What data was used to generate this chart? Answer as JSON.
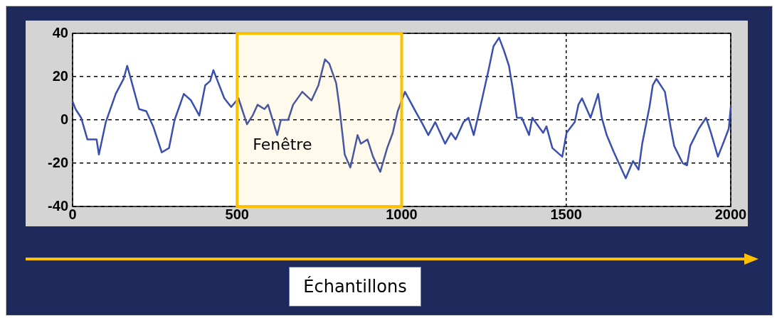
{
  "chart_data": {
    "type": "line",
    "xlabel": "Échantillons",
    "xlim": [
      0,
      2000
    ],
    "xticks": [
      0,
      500,
      1000,
      1500,
      2000
    ],
    "ylim": [
      -40,
      40
    ],
    "yticks": [
      -40,
      -20,
      0,
      20,
      40
    ],
    "grid": true,
    "legend": false,
    "marker": "none",
    "line_style": "solid",
    "bands": [
      {
        "axis": "x",
        "from": 500,
        "to": 1000,
        "label": "Fenêtre",
        "color": "#ffc000"
      }
    ],
    "series": [
      {
        "color": "#3a4fb0",
        "x": [
          0,
          9,
          26,
          45,
          73,
          80,
          101,
          131,
          155,
          166,
          177,
          202,
          224,
          245,
          271,
          293,
          310,
          338,
          360,
          385,
          403,
          418,
          428,
          461,
          482,
          504,
          530,
          547,
          562,
          583,
          594,
          622,
          633,
          655,
          670,
          698,
          726,
          747,
          767,
          780,
          801,
          810,
          827,
          844,
          853,
          866,
          876,
          896,
          913,
          935,
          956,
          973,
          988,
          1010,
          1042,
          1064,
          1081,
          1102,
          1132,
          1150,
          1164,
          1188,
          1203,
          1219,
          1236,
          1264,
          1279,
          1296,
          1311,
          1326,
          1337,
          1350,
          1365,
          1387,
          1397,
          1430,
          1440,
          1458,
          1488,
          1501,
          1526,
          1537,
          1548,
          1574,
          1597,
          1608,
          1623,
          1645,
          1660,
          1681,
          1703,
          1720,
          1731,
          1753,
          1763,
          1774,
          1800,
          1817,
          1828,
          1854,
          1867,
          1877,
          1903,
          1925,
          1940,
          1961,
          1979,
          1994,
          2000
        ],
        "values": [
          8.5,
          5,
          1,
          -9,
          -9,
          -16,
          -1,
          12,
          19,
          25,
          19,
          5,
          4,
          -3,
          -15,
          -13,
          0,
          12,
          9,
          2,
          16,
          18,
          23,
          10,
          6,
          10,
          -2,
          2,
          7,
          5,
          7,
          -7,
          0,
          0,
          7,
          13,
          9,
          16,
          28,
          26,
          17,
          7,
          -16,
          -22,
          -16,
          -7,
          -11,
          -9,
          -17,
          -24,
          -13,
          -6,
          4,
          13,
          4,
          -2,
          -7,
          -1,
          -11,
          -6,
          -9,
          -1,
          1,
          -7,
          4,
          23,
          34,
          38,
          32,
          25,
          15,
          1,
          1,
          -7,
          1,
          -6,
          -3,
          -13,
          -17,
          -6,
          -1,
          7,
          10,
          1,
          12,
          1,
          -7,
          -15,
          -20,
          -27,
          -19,
          -23,
          -11,
          6,
          16,
          19,
          13,
          -3,
          -12,
          -20,
          -21,
          -12,
          -4,
          1,
          -6,
          -17,
          -10,
          -4,
          6
        ]
      }
    ]
  }
}
